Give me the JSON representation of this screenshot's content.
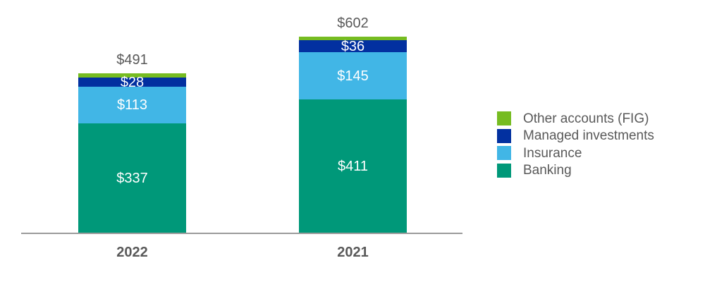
{
  "chart_data": {
    "type": "stacked-bar",
    "title": "",
    "categories": [
      "2022",
      "2021"
    ],
    "totals": [
      491,
      602
    ],
    "total_labels": [
      "$491",
      "$602"
    ],
    "series": [
      {
        "name": "Banking",
        "color": "#009879",
        "values": [
          337,
          411
        ],
        "value_labels": [
          "$337",
          "$411"
        ]
      },
      {
        "name": "Insurance",
        "color": "#41B6E6",
        "values": [
          113,
          145
        ],
        "value_labels": [
          "$113",
          "$145"
        ]
      },
      {
        "name": "Managed investments",
        "color": "#0230A0",
        "values": [
          28,
          36
        ],
        "value_labels": [
          "$28",
          "$36"
        ]
      },
      {
        "name": "Other accounts (FIG)",
        "color": "#76BC21",
        "values": [
          13,
          10
        ],
        "value_labels": [
          "",
          ""
        ]
      }
    ],
    "legend": {
      "position": "right",
      "items": [
        "Other accounts (FIG)",
        "Managed investments",
        "Insurance",
        "Banking"
      ]
    },
    "axis": {
      "baseline_color": "#9B9B9B",
      "x_tick_labels": [
        "2022",
        "2021"
      ]
    },
    "colors": {
      "total_label": "#595959",
      "segment_label": "#FFFFFF",
      "year_label": "#595959"
    },
    "grid": false,
    "y_axis_shown": false
  }
}
